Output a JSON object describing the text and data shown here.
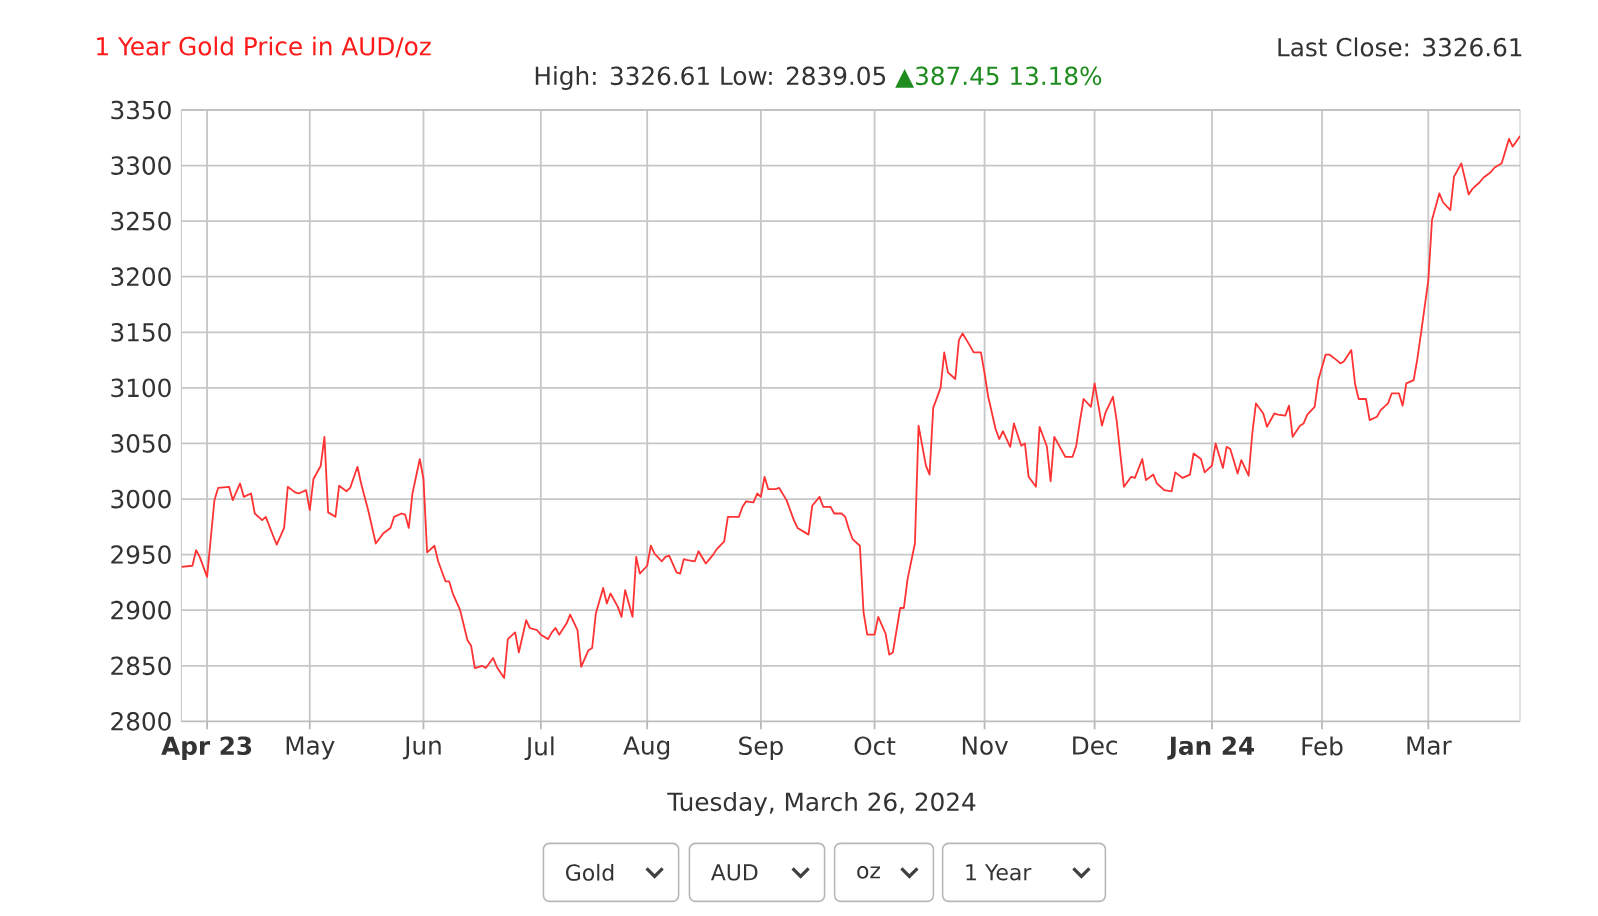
{
  "chart_data": {
    "type": "line",
    "title": "1 Year Gold Price in AUD/oz",
    "subtitle": "High: 3326.61 Low: 2839.05",
    "annotations": [
      "Last Close: 3326.61",
      "▲387.45 13.18%",
      "Tuesday, March 26, 2024",
      "Gold",
      "AUD",
      "oz",
      "1 Year"
    ],
    "x": [
      "2023-03-27",
      "2023-03-30",
      "2023-03-31",
      "2023-04-01",
      "2023-04-03",
      "2023-04-05",
      "2023-04-06",
      "2023-04-09",
      "2023-04-10",
      "2023-04-12",
      "2023-04-13",
      "2023-04-15",
      "2023-04-16",
      "2023-04-18",
      "2023-04-19",
      "2023-04-21",
      "2023-04-22",
      "2023-04-24",
      "2023-04-25",
      "2023-04-27",
      "2023-04-28",
      "2023-04-30",
      "2023-05-01",
      "2023-05-02",
      "2023-05-04",
      "2023-05-05",
      "2023-05-06",
      "2023-05-08",
      "2023-05-09",
      "2023-05-11",
      "2023-05-12",
      "2023-05-14",
      "2023-05-15",
      "2023-05-17",
      "2023-05-19",
      "2023-05-21",
      "2023-05-23",
      "2023-05-24",
      "2023-05-26",
      "2023-05-27",
      "2023-05-28",
      "2023-05-29",
      "2023-05-31",
      "2023-06-01",
      "2023-06-02",
      "2023-06-04",
      "2023-06-05",
      "2023-06-07",
      "2023-06-08",
      "2023-06-09",
      "2023-06-11",
      "2023-06-13",
      "2023-06-14",
      "2023-06-15",
      "2023-06-17",
      "2023-06-18",
      "2023-06-20",
      "2023-06-21",
      "2023-06-23",
      "2023-06-24",
      "2023-06-26",
      "2023-06-27",
      "2023-06-29",
      "2023-06-30",
      "2023-07-02",
      "2023-07-03",
      "2023-07-05",
      "2023-07-06",
      "2023-07-07",
      "2023-07-08",
      "2023-07-10",
      "2023-07-11",
      "2023-07-13",
      "2023-07-14",
      "2023-07-16",
      "2023-07-17",
      "2023-07-18",
      "2023-07-20",
      "2023-07-21",
      "2023-07-22",
      "2023-07-24",
      "2023-07-25",
      "2023-07-26",
      "2023-07-28",
      "2023-07-29",
      "2023-07-30",
      "2023-08-01",
      "2023-08-02",
      "2023-08-03",
      "2023-08-05",
      "2023-08-06",
      "2023-08-07",
      "2023-08-09",
      "2023-08-10",
      "2023-08-11",
      "2023-08-12",
      "2023-08-14",
      "2023-08-15",
      "2023-08-17",
      "2023-08-18",
      "2023-08-19",
      "2023-08-20",
      "2023-08-22",
      "2023-08-23",
      "2023-08-24",
      "2023-08-26",
      "2023-08-27",
      "2023-08-28",
      "2023-08-30",
      "2023-08-31",
      "2023-09-01",
      "2023-09-02",
      "2023-09-03",
      "2023-09-05",
      "2023-09-06",
      "2023-09-08",
      "2023-09-10",
      "2023-09-11",
      "2023-09-13",
      "2023-09-14",
      "2023-09-15",
      "2023-09-17",
      "2023-09-18",
      "2023-09-20",
      "2023-09-21",
      "2023-09-23",
      "2023-09-24",
      "2023-09-25",
      "2023-09-26",
      "2023-09-28",
      "2023-09-29",
      "2023-09-30",
      "2023-10-02",
      "2023-10-03",
      "2023-10-05",
      "2023-10-06",
      "2023-10-07",
      "2023-10-09",
      "2023-10-10",
      "2023-10-11",
      "2023-10-13",
      "2023-10-14",
      "2023-10-16",
      "2023-10-17",
      "2023-10-18",
      "2023-10-20",
      "2023-10-21",
      "2023-10-22",
      "2023-10-24",
      "2023-10-25",
      "2023-10-26",
      "2023-10-28",
      "2023-10-29",
      "2023-10-31",
      "2023-11-01",
      "2023-11-02",
      "2023-11-04",
      "2023-11-05",
      "2023-11-06",
      "2023-11-08",
      "2023-11-09",
      "2023-11-11",
      "2023-11-12",
      "2023-11-13",
      "2023-11-15",
      "2023-11-16",
      "2023-11-18",
      "2023-11-19",
      "2023-11-20",
      "2023-11-22",
      "2023-11-23",
      "2023-11-25",
      "2023-11-26",
      "2023-11-27",
      "2023-11-28",
      "2023-11-30",
      "2023-12-01",
      "2023-12-03",
      "2023-12-04",
      "2023-12-06",
      "2023-12-07",
      "2023-12-09",
      "2023-12-11",
      "2023-12-12",
      "2023-12-14",
      "2023-12-15",
      "2023-12-17",
      "2023-12-18",
      "2023-12-20",
      "2023-12-22",
      "2023-12-23",
      "2023-12-25",
      "2023-12-27",
      "2023-12-28",
      "2023-12-30",
      "2023-12-31",
      "2024-01-02",
      "2024-01-03",
      "2024-01-05",
      "2024-01-06",
      "2024-01-07",
      "2024-01-09",
      "2024-01-10",
      "2024-01-12",
      "2024-01-13",
      "2024-01-14",
      "2024-01-16",
      "2024-01-17",
      "2024-01-19",
      "2024-01-20",
      "2024-01-22",
      "2024-01-23",
      "2024-01-24",
      "2024-01-26",
      "2024-01-27",
      "2024-01-28",
      "2024-01-30",
      "2024-01-31",
      "2024-02-02",
      "2024-02-03",
      "2024-02-05",
      "2024-02-06",
      "2024-02-07",
      "2024-02-09",
      "2024-02-10",
      "2024-02-11",
      "2024-02-13",
      "2024-02-14",
      "2024-02-16",
      "2024-02-17",
      "2024-02-19",
      "2024-02-20",
      "2024-02-22",
      "2024-02-23",
      "2024-02-24",
      "2024-02-26",
      "2024-02-27",
      "2024-02-28",
      "2024-03-01",
      "2024-03-02",
      "2024-03-04",
      "2024-03-05",
      "2024-03-07",
      "2024-03-08",
      "2024-03-10",
      "2024-03-12",
      "2024-03-13",
      "2024-03-15",
      "2024-03-16",
      "2024-03-18",
      "2024-03-19",
      "2024-03-21",
      "2024-03-23",
      "2024-03-24",
      "2024-03-26"
    ],
    "series": [
      {
        "color": "#ff3333",
        "values": [
          2939,
          2940,
          2954,
          2948,
          2930,
          2999,
          3010,
          3011,
          2999,
          3014,
          3002,
          3005,
          2987,
          2981,
          2984,
          2967,
          2959,
          2974,
          3011,
          3006,
          3005,
          3008,
          2990,
          3018,
          3030,
          3056,
          2988,
          2984,
          3012,
          3007,
          3010,
          3029,
          3014,
          2989,
          2960,
          2969,
          2974,
          2984,
          2987,
          2986,
          2974,
          3005,
          3036,
          3018,
          2952,
          2958,
          2944,
          2926,
          2926,
          2915,
          2900,
          2873,
          2868,
          2848,
          2850,
          2848,
          2857,
          2849,
          2839.05,
          2874,
          2880,
          2862,
          2891,
          2884,
          2882,
          2878,
          2874,
          2880,
          2884,
          2878,
          2888,
          2896,
          2882,
          2849,
          2864,
          2866,
          2897,
          2920,
          2906,
          2915,
          2903,
          2894,
          2918,
          2894,
          2948,
          2933,
          2940,
          2958,
          2951,
          2944,
          2948,
          2949,
          2934,
          2933,
          2946,
          2945,
          2944,
          2953,
          2942,
          2946,
          2950,
          2955,
          2962,
          2984,
          2984,
          2984,
          2993,
          2998,
          2997,
          3005,
          3002,
          3020,
          3009,
          3009,
          3010,
          2999,
          2981,
          2974,
          2970,
          2968,
          2994,
          3002,
          2993,
          2993,
          2987,
          2987,
          2984,
          2973,
          2964,
          2958,
          2898,
          2878,
          2878,
          2894,
          2879,
          2860,
          2862,
          2902,
          2902,
          2928,
          2960,
          3066,
          3030,
          3022,
          3082,
          3100,
          3132,
          3114,
          3108,
          3143,
          3149,
          3138,
          3132,
          3132,
          3113,
          3092,
          3063,
          3054,
          3061,
          3047,
          3068,
          3048,
          3050,
          3020,
          3011,
          3065,
          3047,
          3016,
          3056,
          3044,
          3038,
          3038,
          3048,
          3070,
          3090,
          3083,
          3104,
          3066,
          3078,
          3092,
          3071,
          3011,
          3020,
          3019,
          3036,
          3017,
          3022,
          3014,
          3008,
          3007,
          3024,
          3019,
          3022,
          3041,
          3036,
          3024,
          3030,
          3050,
          3028,
          3047,
          3045,
          3023,
          3035,
          3021,
          3059,
          3086,
          3077,
          3065,
          3077,
          3076,
          3075,
          3084,
          3056,
          3066,
          3068,
          3076,
          3083,
          3107,
          3130,
          3130,
          3125,
          3122,
          3124,
          3134,
          3104,
          3090,
          3090,
          3071,
          3074,
          3080,
          3086,
          3095,
          3095,
          3084,
          3104,
          3107,
          3126,
          3149,
          3197,
          3251,
          3275,
          3267,
          3260,
          3290,
          3302,
          3274,
          3279,
          3285,
          3289,
          3294,
          3298,
          3302,
          3324,
          3317,
          3326.61
        ]
      }
    ],
    "xlim": [
      "2023-03-27",
      "2024-03-26"
    ],
    "xticks": [
      {
        "value": "2023-04-03",
        "label": "**Apr 23**"
      },
      {
        "value": "2023-05-01",
        "label": "May"
      },
      {
        "value": "2023-06-01",
        "label": "Jun"
      },
      {
        "value": "2023-07-03",
        "label": "Jul"
      },
      {
        "value": "2023-08-01",
        "label": "Aug"
      },
      {
        "value": "2023-09-01",
        "label": "Sep"
      },
      {
        "value": "2023-10-02",
        "label": "Oct"
      },
      {
        "value": "2023-11-01",
        "label": "Nov"
      },
      {
        "value": "2023-12-01",
        "label": "Dec"
      },
      {
        "value": "2024-01-02",
        "label": "**Jan 24**"
      },
      {
        "value": "2024-02-01",
        "label": "Feb"
      },
      {
        "value": "2024-03-01",
        "label": "Mar"
      }
    ],
    "ylim": [
      2800,
      3350
    ],
    "yticks": [
      2800,
      2850,
      2900,
      2950,
      3000,
      3050,
      3100,
      3150,
      3200,
      3250,
      3300,
      3350
    ],
    "grid": true,
    "line_style": "solid"
  }
}
